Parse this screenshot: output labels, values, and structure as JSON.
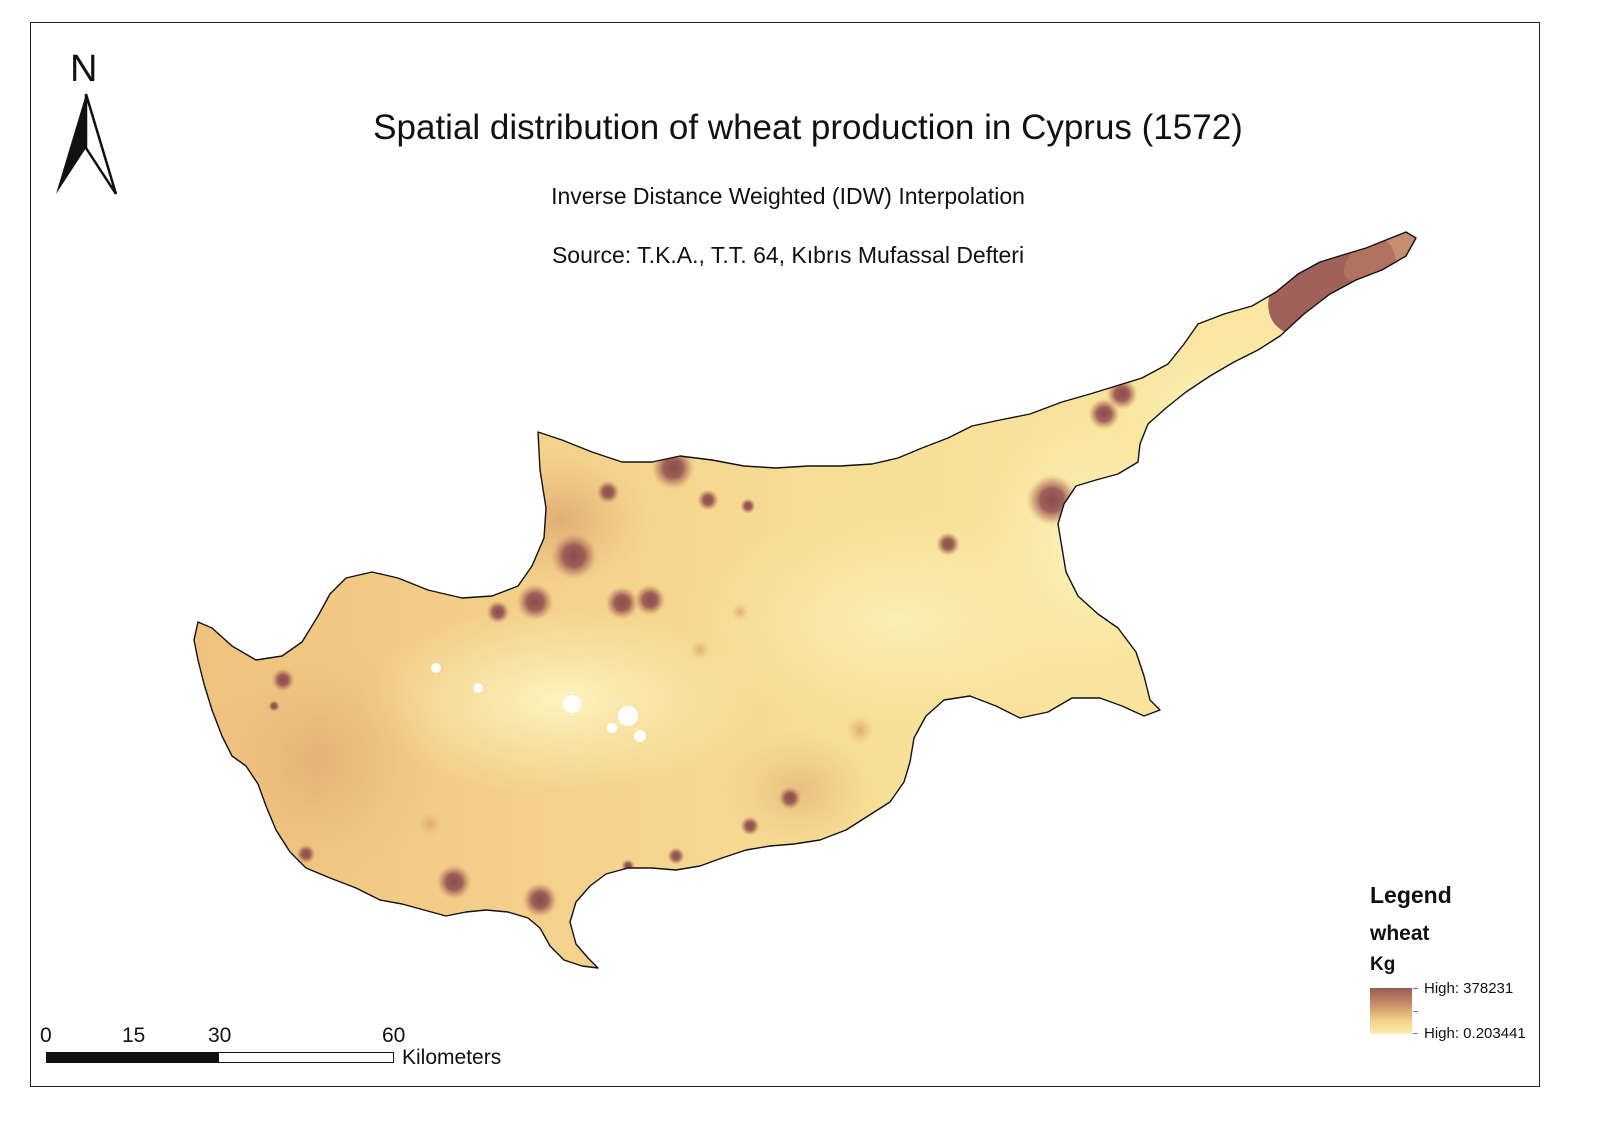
{
  "map": {
    "title": "Spatial distribution of wheat production in Cyprus (1572)",
    "subtitle": "Inverse Distance Weighted (IDW) Interpolation",
    "source": "Source: T.K.A., T.T. 64, Kıbrıs Mufassal Defteri"
  },
  "north_arrow": {
    "label": "N",
    "icon": "north-arrow-icon"
  },
  "legend": {
    "title": "Legend",
    "layer": "wheat",
    "unit": "Kg",
    "high_label": "High: 378231",
    "low_label": "High: 0.203441",
    "colors": {
      "high": "#9a5a55",
      "mid": "#c98d68",
      "low": "#fbeeaf"
    }
  },
  "scale_bar": {
    "ticks": [
      "0",
      "15",
      "30",
      "60"
    ],
    "units": "Kilometers"
  },
  "colors": {
    "island_base": "#f6dc8f",
    "island_light": "#fbf0b0",
    "hotspot": "#8e4f4e",
    "frame": "#222222"
  }
}
